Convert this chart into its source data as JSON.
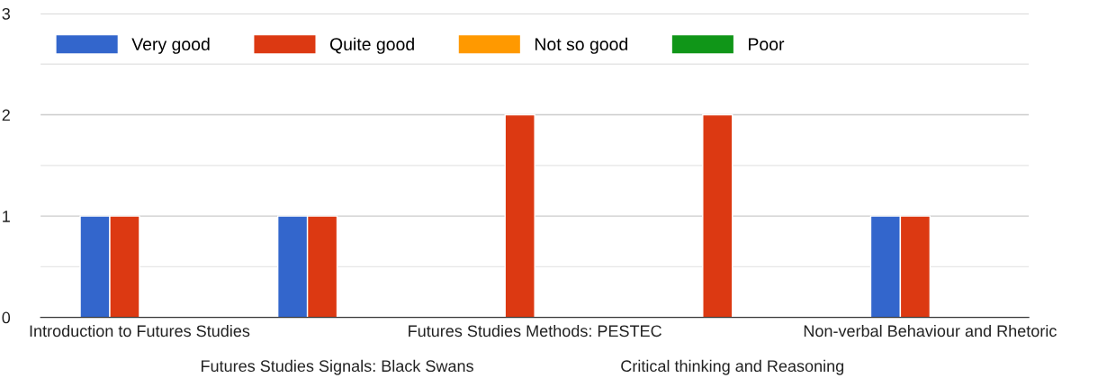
{
  "chart_data": {
    "type": "bar",
    "categories": [
      "Introduction to Futures Studies",
      "Futures Studies Signals: Black Swans",
      "Futures Studies Methods: PESTEC",
      "Critical thinking and Reasoning",
      "Non-verbal Behaviour and Rhetoric"
    ],
    "series": [
      {
        "name": "Very good",
        "color": "#3366cc",
        "values": [
          1,
          1,
          0,
          0,
          1
        ]
      },
      {
        "name": "Quite good",
        "color": "#dc3912",
        "values": [
          1,
          1,
          2,
          2,
          1
        ]
      },
      {
        "name": "Not so good",
        "color": "#ff9900",
        "values": [
          0,
          0,
          0,
          0,
          0
        ]
      },
      {
        "name": "Poor",
        "color": "#109618",
        "values": [
          0,
          0,
          0,
          0,
          0
        ]
      }
    ],
    "ylim": [
      0,
      3
    ],
    "yticks": [
      0,
      {
        "value": 0.5,
        "label": null
      },
      1,
      {
        "value": 1.5,
        "label": null
      },
      2,
      {
        "value": 2.5,
        "label": null
      },
      3
    ],
    "grid": "y",
    "legend": "top left"
  }
}
